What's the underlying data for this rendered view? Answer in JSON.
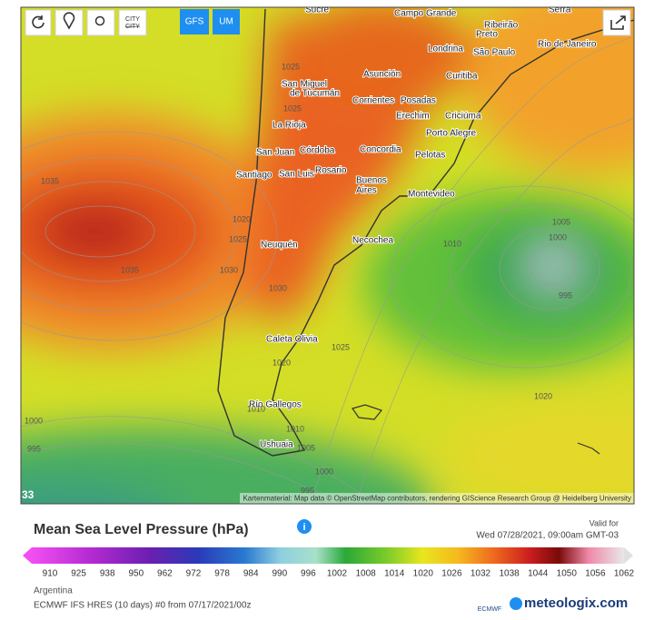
{
  "toolbar": {
    "city_button": "CITY",
    "models": [
      "GFS",
      "UM"
    ]
  },
  "map": {
    "cities": [
      "Sucre",
      "Campo Grande",
      "Serra",
      "Ribeirão",
      "Preto",
      "Londrina",
      "São Paulo",
      "Rio de Janeiro",
      "Curitiba",
      "Asunción",
      "San Miguel",
      "de Tucumán",
      "Corrientes",
      "Posadas",
      "La Rioja",
      "Erechim",
      "Criciúma",
      "Porto Alegre",
      "San Juan",
      "Córdoba",
      "Concordia",
      "Pelotas",
      "Santiago",
      "San Luis",
      "Rosario",
      "Buenos",
      "Aires",
      "Montevideo",
      "Neuquén",
      "Necochea",
      "Caleta Olivia",
      "Río Gallegos",
      "Ushuaia"
    ],
    "isobar_labels": [
      "1035",
      "1035",
      "1025",
      "1025",
      "1020",
      "1025",
      "1030",
      "1030",
      "1025",
      "1020",
      "1010",
      "1010",
      "1005",
      "1000",
      "995",
      "1000",
      "995",
      "1010",
      "1005",
      "1000",
      "995",
      "1020"
    ],
    "corner_label": "33",
    "attribution": "Kartenmaterial: Map data © OpenStreetMap contributors, rendering GIScience Research Group @ Heidelberg University"
  },
  "legend": {
    "title": "Mean Sea Level Pressure (hPa)",
    "valid_label": "Valid for",
    "valid_time": "Wed 07/28/2021, 09:00am GMT-03",
    "scale_ticks": [
      "910",
      "925",
      "938",
      "950",
      "962",
      "972",
      "978",
      "984",
      "990",
      "996",
      "1002",
      "1008",
      "1014",
      "1020",
      "1026",
      "1032",
      "1038",
      "1044",
      "1050",
      "1056",
      "1062"
    ],
    "region": "Argentina",
    "run": "ECMWF IFS HRES (10 days) #0 from 07/17/2021/00z"
  },
  "branding": {
    "provider": "ECMWF",
    "site": "meteologix.com"
  }
}
